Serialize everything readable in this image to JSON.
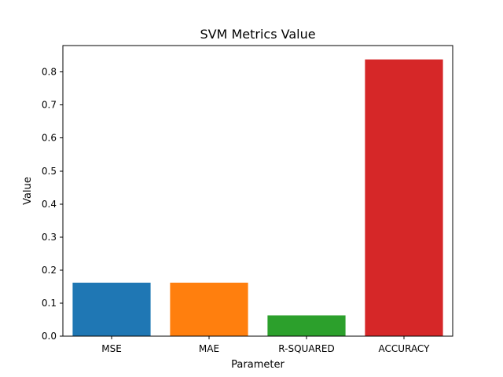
{
  "chart_data": {
    "type": "bar",
    "title": "SVM Metrics Value",
    "xlabel": "Parameter",
    "ylabel": "Value",
    "categories": [
      "MSE",
      "MAE",
      "R-SQUARED",
      "ACCURACY"
    ],
    "values": [
      0.162,
      0.162,
      0.063,
      0.838
    ],
    "colors": [
      "#1f77b4",
      "#ff7f0e",
      "#2ca02c",
      "#d62728"
    ],
    "ylim": [
      0,
      0.88
    ],
    "yticks": [
      0.0,
      0.1,
      0.2,
      0.3,
      0.4,
      0.5,
      0.6,
      0.7,
      0.8
    ],
    "ytick_labels": [
      "0.0",
      "0.1",
      "0.2",
      "0.3",
      "0.4",
      "0.5",
      "0.6",
      "0.7",
      "0.8"
    ],
    "grid": false,
    "legend": "none"
  }
}
